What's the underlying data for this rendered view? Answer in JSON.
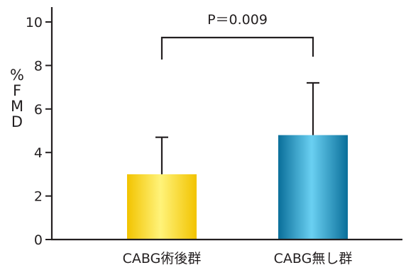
{
  "chart_data": {
    "type": "bar",
    "title": "",
    "xlabel": "",
    "ylabel": "%FMD",
    "ylim": [
      0,
      10.6
    ],
    "yticks": [
      0,
      2,
      4,
      6,
      8,
      10
    ],
    "categories": [
      "CABG術後群",
      "CABG無し群"
    ],
    "values": [
      3.0,
      4.8
    ],
    "error_upper": [
      4.7,
      7.2
    ],
    "bar_colors": [
      "#f2c300",
      "#0a6f9a"
    ],
    "bar_highlight_colors": [
      "#fff37a",
      "#6ad0f2"
    ],
    "significance": {
      "label": "P＝0.009",
      "between": [
        0,
        1
      ]
    },
    "grid": false,
    "legend": "none"
  }
}
